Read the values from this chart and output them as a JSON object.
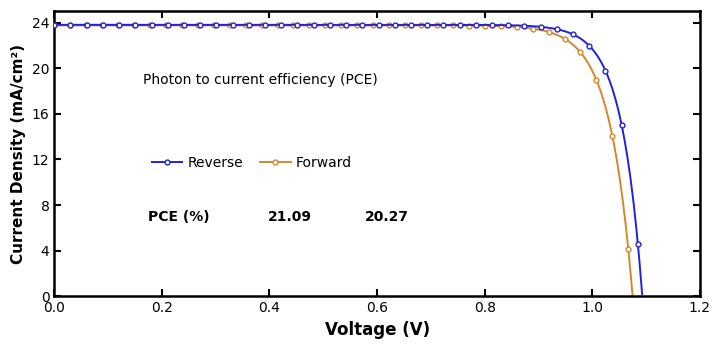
{
  "title": "",
  "xlabel": "Voltage (V)",
  "ylabel": "Current Density (mA/cm²)",
  "xlim": [
    0.0,
    1.2
  ],
  "ylim": [
    0,
    25
  ],
  "yticks": [
    0,
    4,
    8,
    12,
    16,
    20,
    24
  ],
  "xticks": [
    0.0,
    0.2,
    0.4,
    0.6,
    0.8,
    1.0,
    1.2
  ],
  "reverse_color": "#2222dd",
  "forward_color": "#d4882a",
  "annotation_title": "Photon to current efficiency (PCE)",
  "annotation_label": "PCE (%)",
  "reverse_pce": "21.09",
  "forward_pce": "20.27",
  "reverse_label": "Reverse",
  "forward_label": "Forward",
  "Jsc_reverse": 23.8,
  "Voc_reverse": 1.093,
  "nVt_reverse": 0.0385,
  "Jsc_forward": 23.75,
  "Voc_forward": 1.075,
  "nVt_forward": 0.042,
  "figsize": [
    7.22,
    3.5
  ],
  "dpi": 100
}
